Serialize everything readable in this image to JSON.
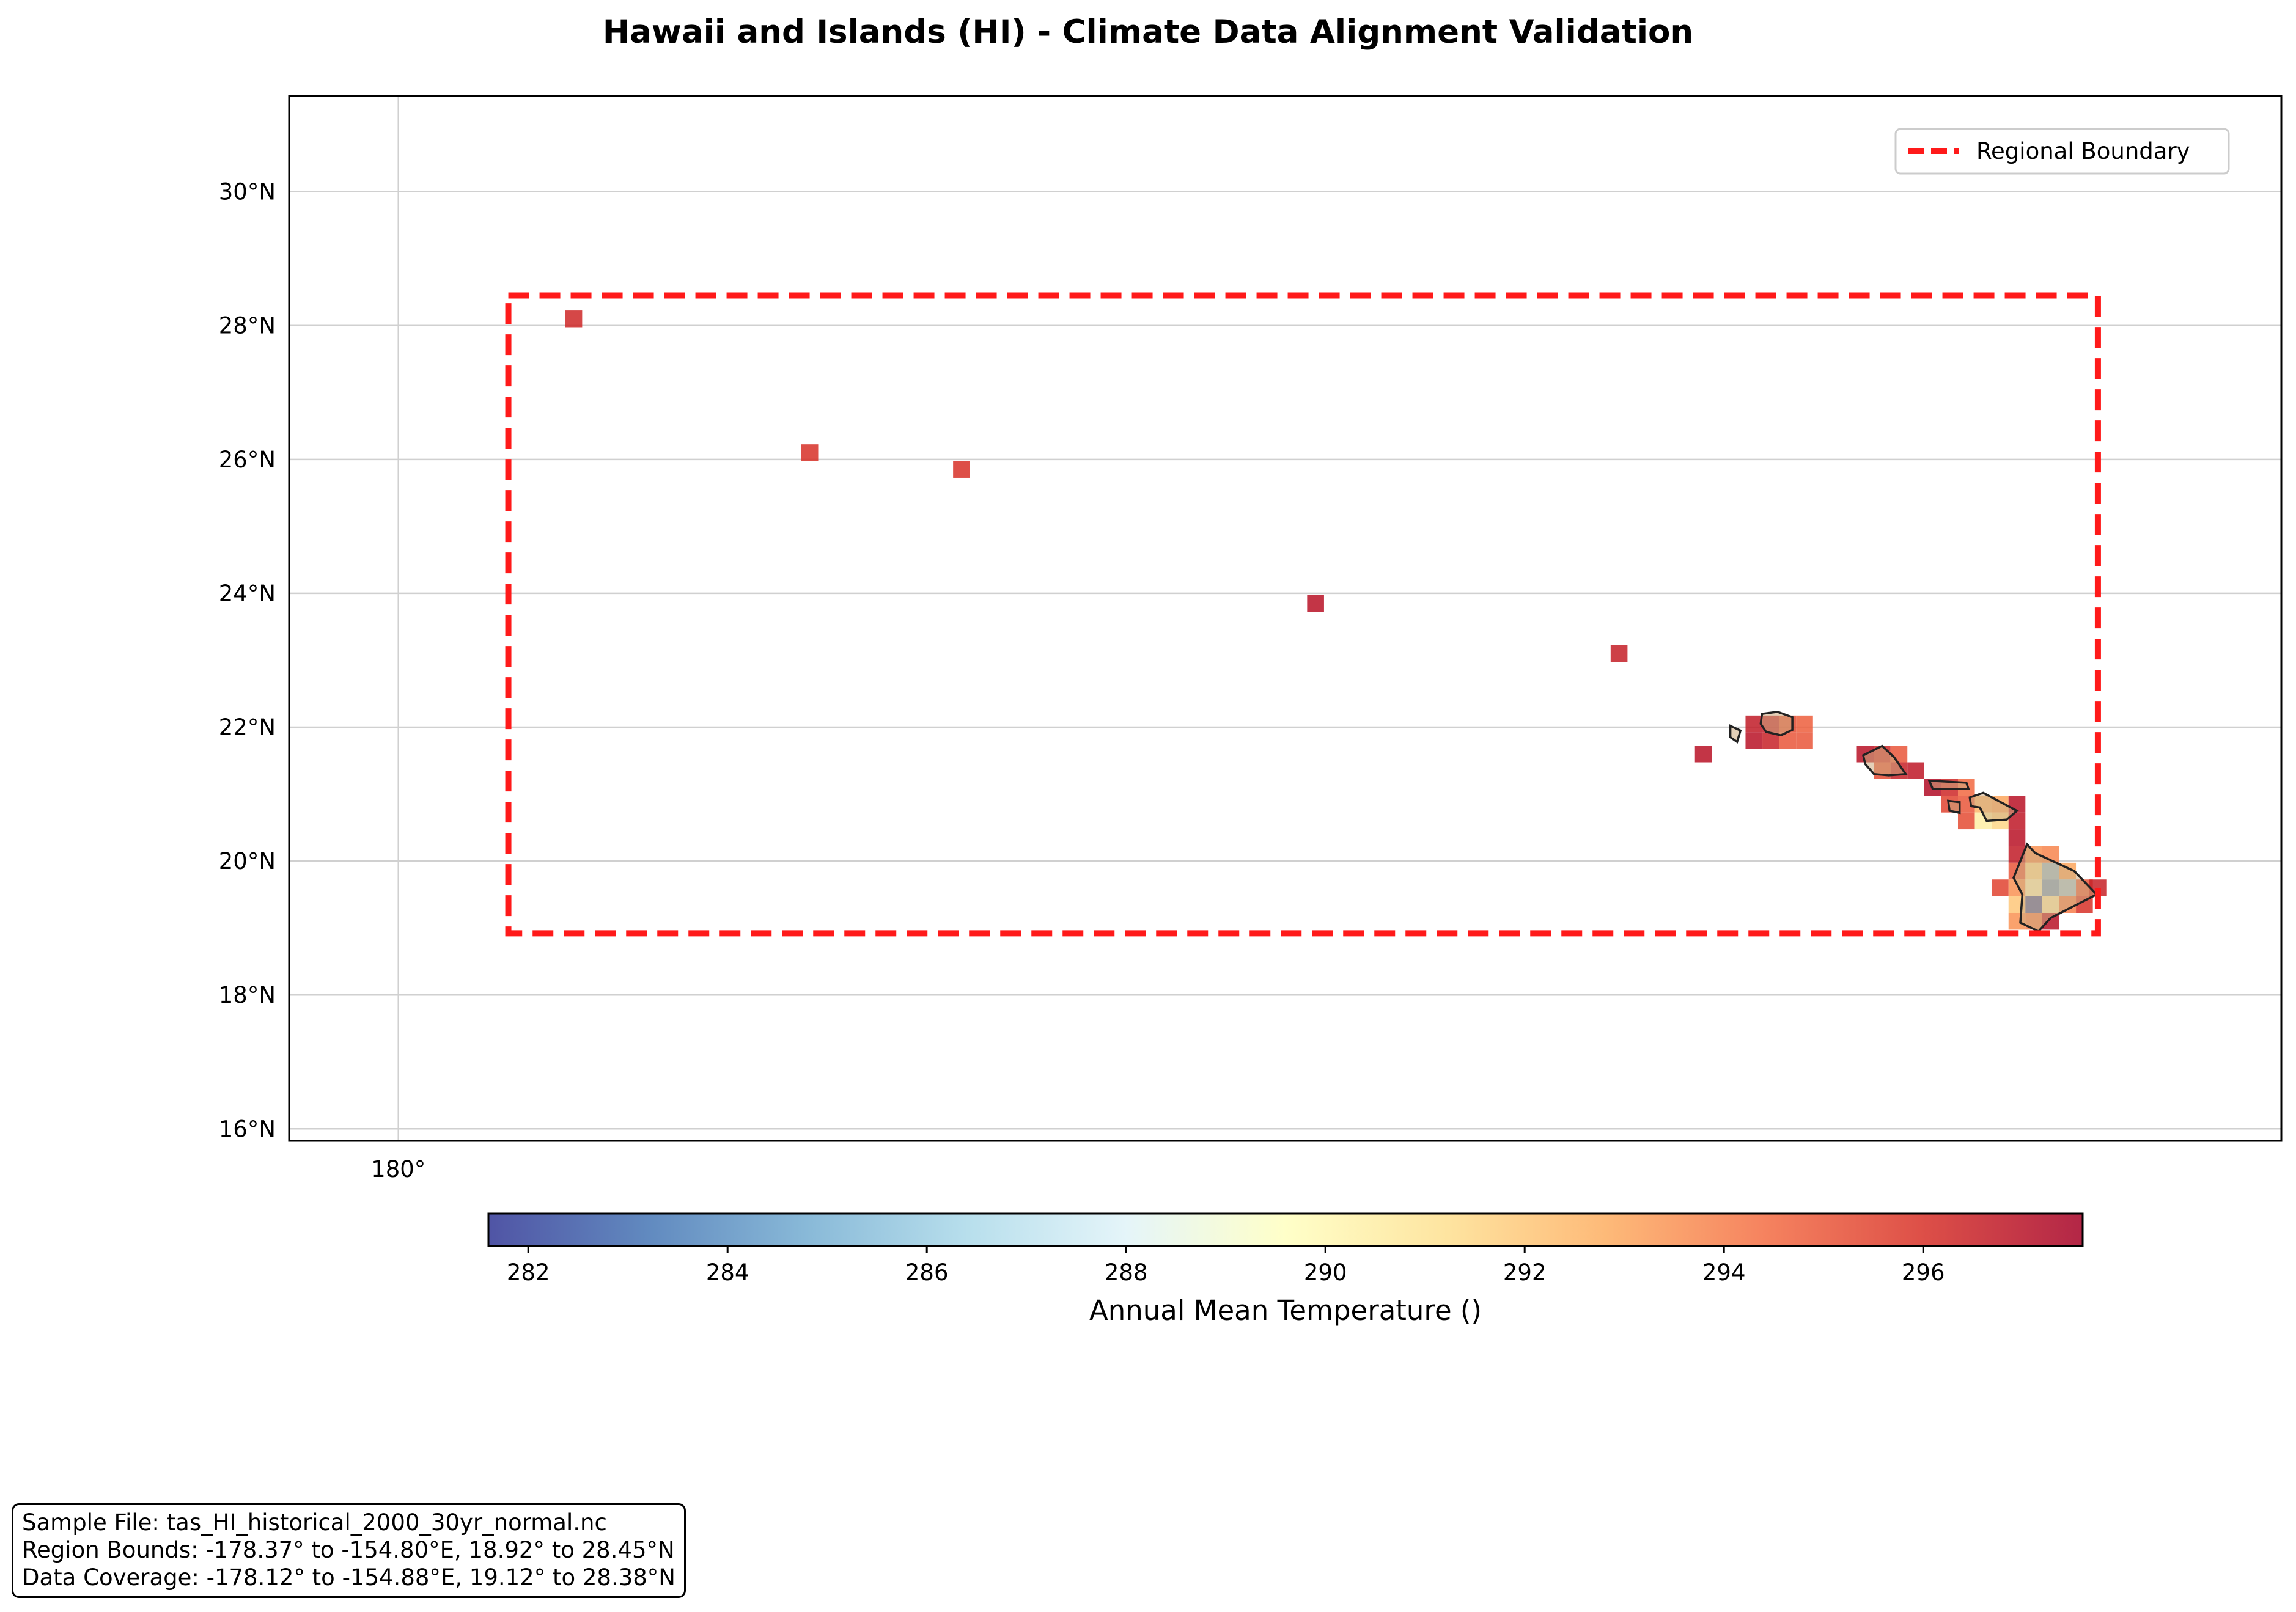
{
  "title": "Hawaii and Islands (HI) - Climate Data Alignment Validation",
  "map": {
    "lat_ticks": [
      {
        "value": 16,
        "label": "16°N"
      },
      {
        "value": 18,
        "label": "18°N"
      },
      {
        "value": 20,
        "label": "20°N"
      },
      {
        "value": 22,
        "label": "22°N"
      },
      {
        "value": 24,
        "label": "24°N"
      },
      {
        "value": 26,
        "label": "26°N"
      },
      {
        "value": 28,
        "label": "28°N"
      },
      {
        "value": 30,
        "label": "30°N"
      }
    ],
    "lon_ticks": [
      {
        "value": -180,
        "label": "180°"
      }
    ],
    "lon_range": [
      -181.62,
      -152.08
    ],
    "lat_range": [
      15.82,
      31.43
    ],
    "grid": true,
    "region_bounds": {
      "lon_min": -178.37,
      "lon_max": -154.8,
      "lat_min": 18.92,
      "lat_max": 28.45
    },
    "boundary_color": "#ff1a1a",
    "cell_size_deg": 0.25,
    "cells": [
      {
        "lon": -177.4,
        "lat": 28.1,
        "v": 296.3
      },
      {
        "lon": -173.9,
        "lat": 26.1,
        "v": 296.0
      },
      {
        "lon": -171.65,
        "lat": 25.85,
        "v": 296.0
      },
      {
        "lon": -166.4,
        "lat": 23.85,
        "v": 297.0
      },
      {
        "lon": -161.9,
        "lat": 23.1,
        "v": 296.6
      },
      {
        "lon": -160.65,
        "lat": 21.6,
        "v": 297.0
      },
      {
        "lon": -159.9,
        "lat": 22.05,
        "v": 296.7
      },
      {
        "lon": -159.65,
        "lat": 22.05,
        "v": 296.7
      },
      {
        "lon": -159.4,
        "lat": 22.05,
        "v": 295.3
      },
      {
        "lon": -159.15,
        "lat": 22.05,
        "v": 294.8
      },
      {
        "lon": -159.9,
        "lat": 21.8,
        "v": 297.0
      },
      {
        "lon": -159.65,
        "lat": 21.8,
        "v": 296.5
      },
      {
        "lon": -159.4,
        "lat": 21.8,
        "v": 295.0
      },
      {
        "lon": -159.15,
        "lat": 21.8,
        "v": 295.0
      },
      {
        "lon": -158.25,
        "lat": 21.6,
        "v": 297.0
      },
      {
        "lon": -158.0,
        "lat": 21.6,
        "v": 296.3
      },
      {
        "lon": -157.75,
        "lat": 21.6,
        "v": 295.0
      },
      {
        "lon": -158.0,
        "lat": 21.35,
        "v": 295.3
      },
      {
        "lon": -157.75,
        "lat": 21.35,
        "v": 296.5
      },
      {
        "lon": -157.5,
        "lat": 21.35,
        "v": 296.8
      },
      {
        "lon": -157.25,
        "lat": 21.1,
        "v": 297.2
      },
      {
        "lon": -157.0,
        "lat": 21.1,
        "v": 296.3
      },
      {
        "lon": -156.75,
        "lat": 21.1,
        "v": 294.5
      },
      {
        "lon": -156.5,
        "lat": 20.85,
        "v": 292.5
      },
      {
        "lon": -156.25,
        "lat": 20.85,
        "v": 293.0
      },
      {
        "lon": -156.0,
        "lat": 20.85,
        "v": 297.0
      },
      {
        "lon": -157.0,
        "lat": 20.85,
        "v": 295.5
      },
      {
        "lon": -156.75,
        "lat": 20.85,
        "v": 295.0
      },
      {
        "lon": -156.75,
        "lat": 20.6,
        "v": 295.3
      },
      {
        "lon": -156.5,
        "lat": 20.6,
        "v": 290.5
      },
      {
        "lon": -156.25,
        "lat": 20.6,
        "v": 291.5
      },
      {
        "lon": -156.0,
        "lat": 20.6,
        "v": 296.8
      },
      {
        "lon": -156.0,
        "lat": 20.35,
        "v": 297.0
      },
      {
        "lon": -155.75,
        "lat": 20.1,
        "v": 293.5
      },
      {
        "lon": -156.0,
        "lat": 20.1,
        "v": 296.7
      },
      {
        "lon": -155.5,
        "lat": 20.1,
        "v": 293.8
      },
      {
        "lon": -156.0,
        "lat": 19.85,
        "v": 295.0
      },
      {
        "lon": -155.75,
        "lat": 19.85,
        "v": 291.0
      },
      {
        "lon": -155.5,
        "lat": 19.85,
        "v": 285.5
      },
      {
        "lon": -155.25,
        "lat": 19.85,
        "v": 293.0
      },
      {
        "lon": -156.25,
        "lat": 19.6,
        "v": 295.5
      },
      {
        "lon": -156.0,
        "lat": 19.6,
        "v": 293.5
      },
      {
        "lon": -155.75,
        "lat": 19.6,
        "v": 289.5
      },
      {
        "lon": -155.5,
        "lat": 19.6,
        "v": 284.5
      },
      {
        "lon": -155.25,
        "lat": 19.6,
        "v": 286.0
      },
      {
        "lon": -155.0,
        "lat": 19.6,
        "v": 295.0
      },
      {
        "lon": -154.8,
        "lat": 19.6,
        "v": 296.5
      },
      {
        "lon": -156.0,
        "lat": 19.35,
        "v": 292.0
      },
      {
        "lon": -155.75,
        "lat": 19.35,
        "v": 282.5
      },
      {
        "lon": -155.5,
        "lat": 19.35,
        "v": 290.0
      },
      {
        "lon": -155.25,
        "lat": 19.35,
        "v": 294.0
      },
      {
        "lon": -155.0,
        "lat": 19.35,
        "v": 296.0
      },
      {
        "lon": -156.0,
        "lat": 19.1,
        "v": 293.5
      },
      {
        "lon": -155.75,
        "lat": 19.1,
        "v": 294.0
      },
      {
        "lon": -155.5,
        "lat": 19.1,
        "v": 297.0
      }
    ],
    "islands": [
      {
        "name": "Kauai",
        "pts": [
          [
            -159.78,
            22.2
          ],
          [
            -159.55,
            22.23
          ],
          [
            -159.33,
            22.15
          ],
          [
            -159.33,
            21.96
          ],
          [
            -159.5,
            21.88
          ],
          [
            -159.72,
            21.93
          ],
          [
            -159.8,
            22.05
          ]
        ]
      },
      {
        "name": "Niihau",
        "pts": [
          [
            -160.25,
            22.02
          ],
          [
            -160.1,
            21.95
          ],
          [
            -160.15,
            21.78
          ],
          [
            -160.25,
            21.85
          ]
        ]
      },
      {
        "name": "Oahu",
        "pts": [
          [
            -158.28,
            21.58
          ],
          [
            -158.0,
            21.72
          ],
          [
            -157.82,
            21.55
          ],
          [
            -157.65,
            21.3
          ],
          [
            -157.9,
            21.28
          ],
          [
            -158.12,
            21.3
          ],
          [
            -158.25,
            21.45
          ]
        ]
      },
      {
        "name": "Molokai",
        "pts": [
          [
            -157.3,
            21.2
          ],
          [
            -156.75,
            21.17
          ],
          [
            -156.72,
            21.08
          ],
          [
            -157.25,
            21.08
          ]
        ]
      },
      {
        "name": "Lanai",
        "pts": [
          [
            -157.02,
            20.9
          ],
          [
            -156.85,
            20.88
          ],
          [
            -156.85,
            20.72
          ],
          [
            -157.0,
            20.75
          ]
        ]
      },
      {
        "name": "Maui",
        "pts": [
          [
            -156.7,
            20.95
          ],
          [
            -156.5,
            21.02
          ],
          [
            -156.0,
            20.75
          ],
          [
            -156.15,
            20.62
          ],
          [
            -156.45,
            20.6
          ],
          [
            -156.55,
            20.8
          ],
          [
            -156.68,
            20.82
          ]
        ]
      },
      {
        "name": "Hawaii",
        "pts": [
          [
            -155.85,
            20.25
          ],
          [
            -155.73,
            20.12
          ],
          [
            -155.15,
            19.85
          ],
          [
            -154.82,
            19.5
          ],
          [
            -155.5,
            19.15
          ],
          [
            -155.68,
            18.95
          ],
          [
            -155.95,
            19.08
          ],
          [
            -155.92,
            19.5
          ],
          [
            -156.05,
            19.75
          ],
          [
            -155.95,
            20.0
          ]
        ]
      }
    ]
  },
  "legend": {
    "label": "Regional Boundary"
  },
  "colorbar": {
    "vmin": 281.6,
    "vmax": 297.6,
    "ticks": [
      {
        "value": 282,
        "label": "282"
      },
      {
        "value": 284,
        "label": "284"
      },
      {
        "value": 286,
        "label": "286"
      },
      {
        "value": 288,
        "label": "288"
      },
      {
        "value": 290,
        "label": "290"
      },
      {
        "value": 292,
        "label": "292"
      },
      {
        "value": 294,
        "label": "294"
      },
      {
        "value": 296,
        "label": "296"
      }
    ],
    "label": "Annual Mean Temperature ()",
    "colormap": "RdYlBu_r",
    "stops": [
      "#313695",
      "#4575b4",
      "#74add1",
      "#abd9e9",
      "#e0f3f8",
      "#ffffbf",
      "#fee090",
      "#fdae61",
      "#f46d43",
      "#d73027",
      "#a50026"
    ]
  },
  "info": {
    "sample_file": "Sample File: tas_HI_historical_2000_30yr_normal.nc",
    "region_bounds": "Region Bounds: -178.37° to -154.80°E, 18.92° to 28.45°N",
    "data_coverage": "Data Coverage: -178.12° to -154.88°E, 19.12° to 28.38°N"
  }
}
